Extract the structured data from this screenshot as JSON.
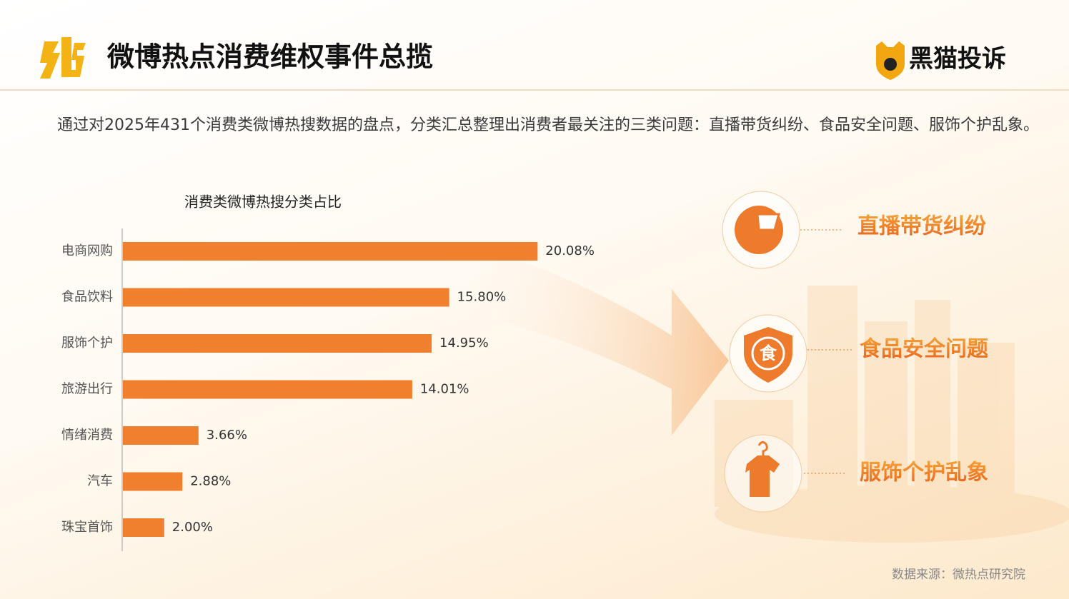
{
  "header": {
    "title": "微博热点消费维权事件总揽",
    "brand": "黑猫投诉"
  },
  "intro": "通过对2025年431个消费类微博热搜数据的盘点，分类汇总整理出消费者最关注的三类问题：直播带货纠纷、食品安全问题、服饰个护乱象。",
  "chart_data": {
    "type": "bar",
    "orientation": "horizontal",
    "title": "消费类微博热搜分类占比",
    "categories": [
      "电商网购",
      "食品饮料",
      "服饰个护",
      "旅游出行",
      "情绪消费",
      "汽车",
      "珠宝首饰"
    ],
    "values": [
      20.08,
      15.8,
      14.95,
      14.01,
      3.66,
      2.88,
      2.0
    ],
    "value_labels": [
      "20.08%",
      "15.80%",
      "14.95%",
      "14.01%",
      "3.66%",
      "2.88%",
      "2.00%"
    ],
    "color": "#f07f2e"
  },
  "issues": [
    {
      "label": "直播带货纠纷"
    },
    {
      "label": "食品安全问题",
      "icon": "食"
    },
    {
      "label": "服饰个护乱象"
    }
  ],
  "source": "数据来源：微热点研究院"
}
